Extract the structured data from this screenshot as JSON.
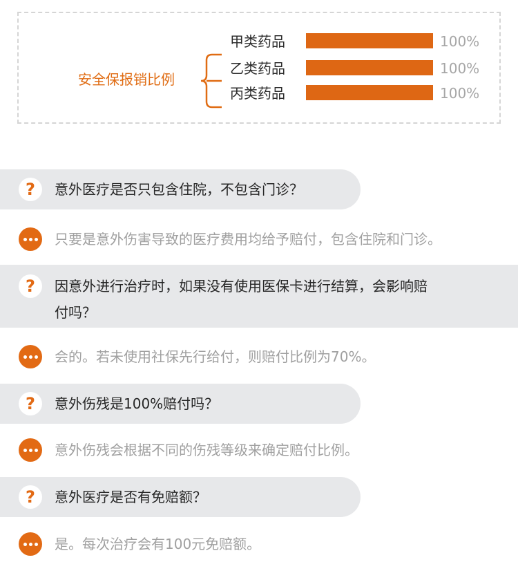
{
  "coverage": {
    "title": "安全保报销比例",
    "items": [
      {
        "label": "甲类药品",
        "percent_text": "100%",
        "fill": 1.0
      },
      {
        "label": "乙类药品",
        "percent_text": "100%",
        "fill": 1.0
      },
      {
        "label": "丙类药品",
        "percent_text": "100%",
        "fill": 1.0
      }
    ],
    "accent_color": "#de6714"
  },
  "faq": {
    "question_icon": "?",
    "answer_icon_name": "ellipsis-icon",
    "items": [
      {
        "question_lines": [
          "意外医疗是否只包含住院，不包含门诊？"
        ],
        "answer": "只要是意外伤害导致的医疗费用均给予赔付，包含住院和门诊。"
      },
      {
        "question_lines": [
          "因意外进行治疗时，如果没有使用医保卡进行结算，会影响赔",
          "付吗？"
        ],
        "answer": "会的。若未使用社保先行给付，则赔付比例为70%。"
      },
      {
        "question_lines": [
          "意外伤残是100%赔付吗？"
        ],
        "answer": "意外伤残会根据不同的伤残等级来确定赔付比例。"
      },
      {
        "question_lines": [
          "意外医疗是否有免赔额？"
        ],
        "answer": "是。每次治疗会有100元免赔额。"
      }
    ]
  }
}
